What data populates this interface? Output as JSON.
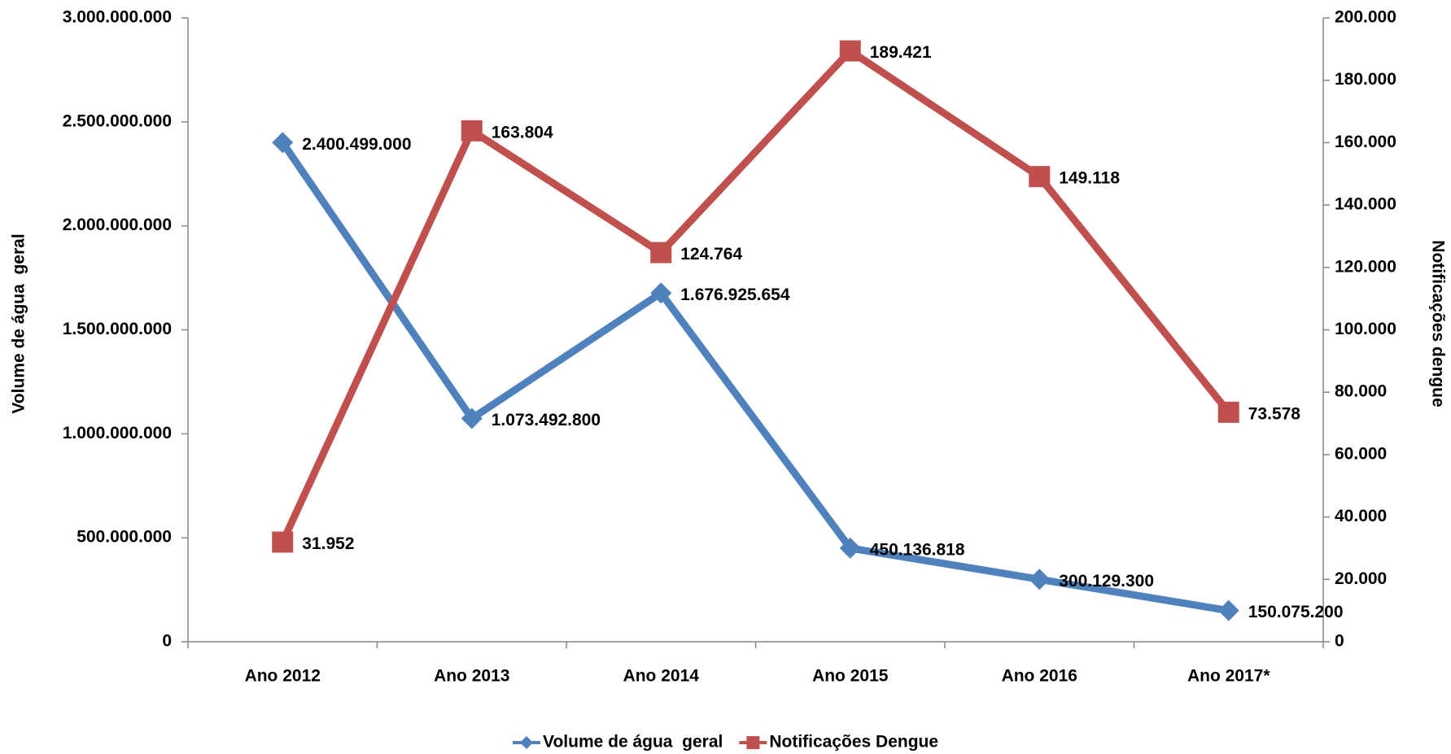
{
  "chart_data": {
    "type": "line",
    "categories": [
      "Ano 2012",
      "Ano 2013",
      "Ano 2014",
      "Ano 2015",
      "Ano 2016",
      "Ano 2017*"
    ],
    "ylabel": "Volume de água  geral",
    "y2label": "Notificações dengue",
    "ylim": [
      0,
      3000000000
    ],
    "yticks": [
      0,
      {
        "value": 500000000,
        "label": "500.000.000"
      },
      {
        "value": 1000000000,
        "label": "1.000.000.000"
      },
      {
        "value": 1500000000,
        "label": "1.500.000.000"
      },
      {
        "value": 2000000000,
        "label": "2.000.000.000"
      },
      {
        "value": 2500000000,
        "label": "2.500.000.000"
      },
      {
        "value": 3000000000,
        "label": "3.000.000.000"
      }
    ],
    "y2lim": [
      0,
      200000
    ],
    "y2ticks": [
      0,
      {
        "value": 20000,
        "label": "20.000"
      },
      {
        "value": 40000,
        "label": "40.000"
      },
      {
        "value": 60000,
        "label": "60.000"
      },
      {
        "value": 80000,
        "label": "80.000"
      },
      {
        "value": 100000,
        "label": "100.000"
      },
      {
        "value": 120000,
        "label": "120.000"
      },
      {
        "value": 140000,
        "label": "140.000"
      },
      {
        "value": 160000,
        "label": "160.000"
      },
      {
        "value": 180000,
        "label": "180.000"
      },
      {
        "value": 200000,
        "label": "200.000"
      }
    ],
    "legend": "bottom",
    "series": [
      {
        "name": "Volume de água  geral",
        "color": "#4f81bd",
        "marker": "diamond",
        "axis": "y",
        "values": [
          2400499000,
          1073492800,
          1676925654,
          450136818,
          300129300,
          150075200
        ],
        "value_labels": [
          "2.400.499.000",
          "1.073.492.800",
          "1.676.925.654",
          "450.136.818",
          "300.129.300",
          "150.075.200"
        ]
      },
      {
        "name": "Notificações Dengue",
        "color": "#c0504d",
        "marker": "square",
        "axis": "y2",
        "values": [
          31952,
          163804,
          124764,
          189421,
          149118,
          73578
        ],
        "value_labels": [
          "31.952",
          "163.804",
          "124.764",
          "189.421",
          "149.118",
          "73.578"
        ]
      }
    ]
  }
}
